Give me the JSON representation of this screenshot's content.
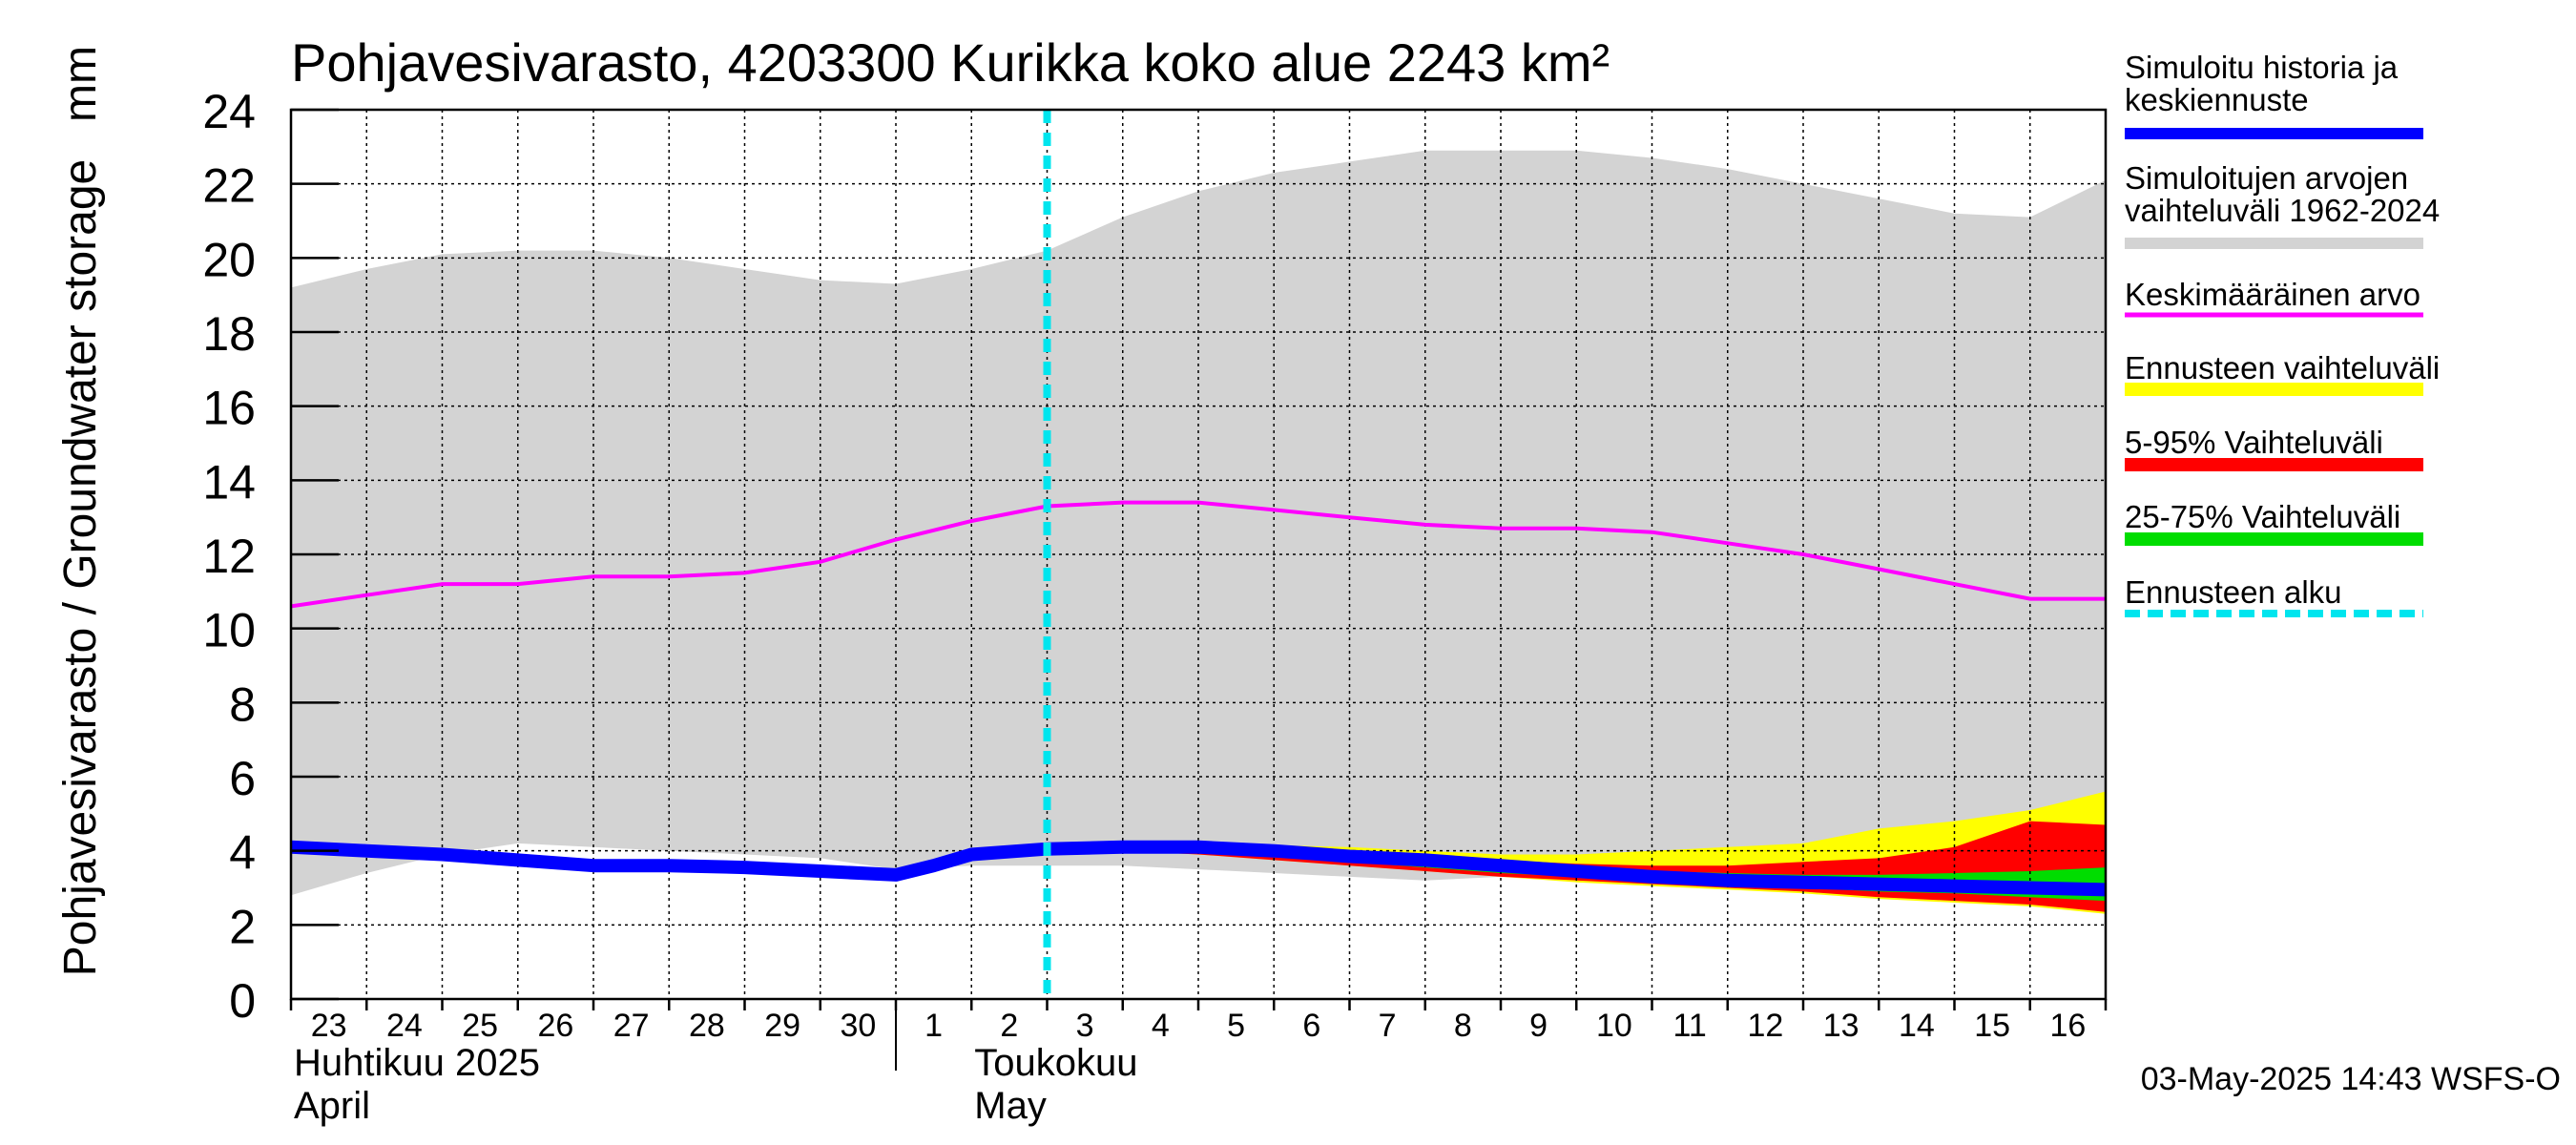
{
  "chart_data": {
    "type": "area",
    "title": "Pohjavesivarasto, 4203300 Kurikka koko alue 2243 km²",
    "ylabel": "Pohjavesivarasto / Groundwater storage",
    "yunit": "mm",
    "ylim": [
      0,
      24
    ],
    "yticks": [
      0,
      2,
      4,
      6,
      8,
      10,
      12,
      14,
      16,
      18,
      20,
      22,
      24
    ],
    "xlim": [
      0,
      24
    ],
    "x_ticks": [
      {
        "x": 0,
        "label": "23"
      },
      {
        "x": 1,
        "label": "24"
      },
      {
        "x": 2,
        "label": "25"
      },
      {
        "x": 3,
        "label": "26"
      },
      {
        "x": 4,
        "label": "27"
      },
      {
        "x": 5,
        "label": "28"
      },
      {
        "x": 6,
        "label": "29"
      },
      {
        "x": 7,
        "label": "30"
      },
      {
        "x": 8,
        "label": "1"
      },
      {
        "x": 9,
        "label": "2"
      },
      {
        "x": 10,
        "label": "3"
      },
      {
        "x": 11,
        "label": "4"
      },
      {
        "x": 12,
        "label": "5"
      },
      {
        "x": 13,
        "label": "6"
      },
      {
        "x": 14,
        "label": "7"
      },
      {
        "x": 15,
        "label": "8"
      },
      {
        "x": 16,
        "label": "9"
      },
      {
        "x": 17,
        "label": "10"
      },
      {
        "x": 18,
        "label": "11"
      },
      {
        "x": 19,
        "label": "12"
      },
      {
        "x": 20,
        "label": "13"
      },
      {
        "x": 21,
        "label": "14"
      },
      {
        "x": 22,
        "label": "15"
      },
      {
        "x": 23,
        "label": "16"
      }
    ],
    "month_labels": [
      {
        "x": 0,
        "line1": "Huhtikuu  2025",
        "line2": "April"
      },
      {
        "x": 9,
        "line1": "Toukokuu",
        "line2": "May"
      }
    ],
    "month_divider_x": 8,
    "forecast_start_x": 10,
    "footer": "03-May-2025 14:43 WSFS-O",
    "colors": {
      "history": "#0000ff",
      "sim_range": "#d3d3d3",
      "mean": "#ff00ff",
      "forecast_range": "#ffff00",
      "p5_95": "#ff0000",
      "p25_75": "#00dd00",
      "forecast_start": "#00e5ee",
      "grid": "#000000"
    },
    "series": [
      {
        "key": "sim_range",
        "name": "Simuloitujen arvojen vaihteluväli 1962-2024",
        "x": [
          0,
          1,
          2,
          3,
          4,
          5,
          6,
          7,
          8,
          9,
          10,
          11,
          12,
          13,
          14,
          15,
          16,
          17,
          18,
          19,
          20,
          21,
          22,
          23,
          24
        ],
        "upper": [
          19.2,
          19.7,
          20.1,
          20.2,
          20.2,
          20.0,
          19.7,
          19.4,
          19.3,
          19.7,
          20.2,
          21.1,
          21.8,
          22.3,
          22.6,
          22.9,
          22.9,
          22.9,
          22.7,
          22.4,
          22.0,
          21.6,
          21.2,
          21.1,
          22.1
        ],
        "lower": [
          2.8,
          3.4,
          3.9,
          4.2,
          4.1,
          4.0,
          3.9,
          3.8,
          3.5,
          3.6,
          3.6,
          3.6,
          3.5,
          3.4,
          3.3,
          3.2,
          3.3,
          3.5,
          3.7,
          3.8,
          3.9,
          4.2,
          4.6,
          5.0,
          5.5
        ]
      },
      {
        "key": "mean",
        "name": "Keskimääräinen arvo",
        "x": [
          0,
          1,
          2,
          3,
          4,
          5,
          6,
          7,
          8,
          9,
          10,
          11,
          12,
          13,
          14,
          15,
          16,
          17,
          18,
          19,
          20,
          21,
          22,
          23,
          24
        ],
        "values": [
          10.6,
          10.9,
          11.2,
          11.2,
          11.4,
          11.4,
          11.5,
          11.8,
          12.4,
          12.9,
          13.3,
          13.4,
          13.4,
          13.2,
          13.0,
          12.8,
          12.7,
          12.7,
          12.6,
          12.3,
          12.0,
          11.6,
          11.2,
          10.8,
          10.8
        ]
      },
      {
        "key": "forecast_range",
        "name": "Ennusteen vaihteluväli",
        "x": [
          10,
          11,
          12,
          13,
          14,
          15,
          16,
          17,
          18,
          19,
          20,
          21,
          22,
          23,
          24
        ],
        "upper": [
          4.1,
          4.15,
          4.2,
          4.15,
          4.1,
          4.0,
          3.9,
          3.9,
          4.0,
          4.1,
          4.2,
          4.6,
          4.8,
          5.1,
          5.6
        ],
        "lower": [
          4.1,
          4.0,
          3.9,
          3.75,
          3.6,
          3.45,
          3.3,
          3.15,
          3.05,
          2.95,
          2.85,
          2.7,
          2.6,
          2.5,
          2.3
        ]
      },
      {
        "key": "p5_95",
        "name": "5-95% Vaihteluväli",
        "x": [
          10,
          11,
          12,
          13,
          14,
          15,
          16,
          17,
          18,
          19,
          20,
          21,
          22,
          23,
          24
        ],
        "upper": [
          4.1,
          4.1,
          4.1,
          4.05,
          3.95,
          3.85,
          3.75,
          3.65,
          3.6,
          3.6,
          3.7,
          3.8,
          4.1,
          4.8,
          4.7
        ],
        "lower": [
          4.1,
          4.0,
          3.9,
          3.75,
          3.6,
          3.45,
          3.3,
          3.2,
          3.1,
          3.0,
          2.9,
          2.75,
          2.65,
          2.55,
          2.35
        ]
      },
      {
        "key": "p25_75",
        "name": "25-75% Vaihteluväli",
        "x": [
          10,
          11,
          12,
          13,
          14,
          15,
          16,
          17,
          18,
          19,
          20,
          21,
          22,
          23,
          24
        ],
        "upper": [
          4.1,
          4.1,
          4.05,
          3.95,
          3.85,
          3.75,
          3.65,
          3.55,
          3.45,
          3.4,
          3.35,
          3.35,
          3.4,
          3.45,
          3.55
        ],
        "lower": [
          4.1,
          4.05,
          3.95,
          3.85,
          3.7,
          3.55,
          3.4,
          3.3,
          3.2,
          3.1,
          3.0,
          2.9,
          2.85,
          2.75,
          2.65
        ]
      },
      {
        "key": "history",
        "name": "Simuloitu historia ja keskiennuste",
        "x": [
          0,
          1,
          2,
          3,
          4,
          5,
          6,
          7,
          8,
          8.5,
          9,
          10,
          11,
          12,
          13,
          14,
          15,
          16,
          17,
          18,
          19,
          20,
          21,
          22,
          23,
          24
        ],
        "values": [
          4.1,
          4.0,
          3.9,
          3.75,
          3.6,
          3.6,
          3.55,
          3.45,
          3.35,
          3.6,
          3.9,
          4.05,
          4.1,
          4.1,
          4.0,
          3.85,
          3.75,
          3.6,
          3.45,
          3.3,
          3.2,
          3.15,
          3.1,
          3.05,
          3.0,
          2.95
        ]
      }
    ],
    "legend": {
      "placement": "right",
      "entries": [
        {
          "key": "history",
          "lines": [
            "Simuloitu historia ja",
            "keskiennuste"
          ]
        },
        {
          "key": "sim_range",
          "lines": [
            "Simuloitujen arvojen",
            "vaihteluväli 1962-2024"
          ]
        },
        {
          "key": "mean",
          "lines": [
            "Keskimääräinen arvo"
          ]
        },
        {
          "key": "forecast_range",
          "lines": [
            "Ennusteen vaihteluväli"
          ]
        },
        {
          "key": "p5_95",
          "lines": [
            "5-95% Vaihteluväli"
          ]
        },
        {
          "key": "p25_75",
          "lines": [
            "25-75% Vaihteluväli"
          ]
        },
        {
          "key": "forecast_start",
          "lines": [
            "Ennusteen alku"
          ]
        }
      ]
    }
  }
}
